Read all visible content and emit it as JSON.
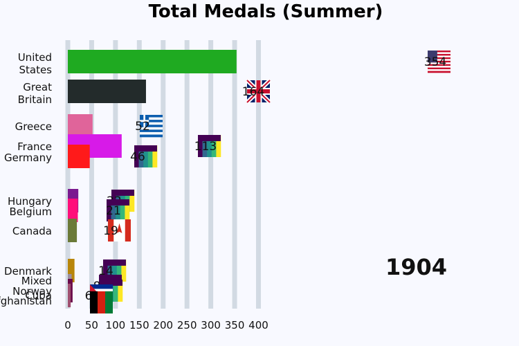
{
  "chart_data": {
    "type": "bar",
    "orientation": "horizontal",
    "title": "Total Medals (Summer)",
    "period_label": "1904",
    "xlim": [
      0,
      400
    ],
    "xticks": [
      0,
      50,
      100,
      150,
      200,
      250,
      300,
      350,
      400
    ],
    "grid": true,
    "categories": [
      "United States",
      "Great Britain",
      "Greece",
      "France",
      "Germany",
      "Hungary",
      "Belgium",
      "Canada",
      "Denmark",
      "Mixed",
      "Norway",
      "Cuba",
      "Afghanistan"
    ],
    "label_lines": [
      [
        "United",
        "States"
      ],
      [
        "Great",
        "Britain"
      ],
      [
        "Greece"
      ],
      [
        "France"
      ],
      [
        "Germany"
      ],
      [
        "Hungary"
      ],
      [
        "Belgium"
      ],
      [
        "Canada"
      ],
      [
        "Denmark"
      ],
      [
        "Mixed"
      ],
      [
        "Norway"
      ],
      [
        "Cuba"
      ],
      [
        "Afghanistan"
      ]
    ],
    "values": [
      354,
      164,
      52,
      113,
      46,
      22,
      21,
      19,
      14,
      8,
      10,
      6,
      0
    ],
    "value_labels": [
      "354",
      "164",
      "52",
      "113",
      "46",
      "22",
      "21",
      "19",
      "14",
      "8",
      "10",
      "6",
      ""
    ],
    "colors": [
      "#1faa21",
      "#232b2b",
      "#e0649a",
      "#d71ae8",
      "#ff1a1a",
      "#7b1a8f",
      "#ff0f7a",
      "#6b7a38",
      "#b8860b",
      "#9c8fa0",
      "#6a0a4a",
      "#a05070",
      "#111111"
    ],
    "flags": [
      "us-flag",
      "gb-flag",
      "gr-flag",
      "viridis-flag",
      "viridis-flag",
      "viridis-flag",
      "viridis-flag",
      "ca-flag",
      "viridis-flag",
      "viridis-flag",
      "viridis-flag",
      "cu-flag",
      "af-flag"
    ]
  }
}
